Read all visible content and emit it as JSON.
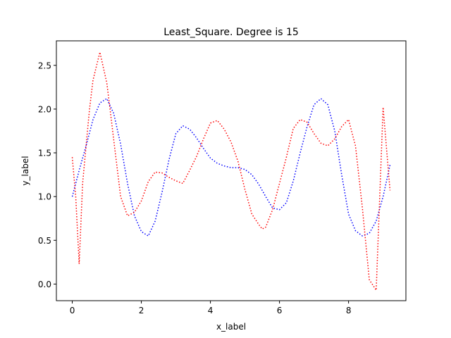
{
  "chart_data": {
    "type": "line",
    "title": "Least_Square. Degree is 15",
    "xlabel": "x_label",
    "ylabel": "y_label",
    "xlim": [
      -0.46,
      9.66
    ],
    "ylim": [
      -0.19,
      2.78
    ],
    "xticks": [
      0,
      2,
      4,
      6,
      8
    ],
    "xtick_labels": [
      "0",
      "2",
      "4",
      "6",
      "8"
    ],
    "yticks": [
      0.0,
      0.5,
      1.0,
      1.5,
      2.0,
      2.5
    ],
    "ytick_labels": [
      "0.0",
      "0.5",
      "1.0",
      "1.5",
      "2.0",
      "2.5"
    ],
    "grid": false,
    "series": [
      {
        "color": "#0000ff",
        "linestyle": "dotted",
        "x": [
          0.0,
          0.2,
          0.4,
          0.6,
          0.8,
          1.0,
          1.2,
          1.4,
          1.6,
          1.8,
          2.0,
          2.2,
          2.4,
          2.6,
          2.8,
          3.0,
          3.2,
          3.4,
          3.6,
          3.8,
          4.0,
          4.2,
          4.4,
          4.6,
          4.8,
          5.0,
          5.2,
          5.4,
          5.6,
          5.8,
          6.0,
          6.2,
          6.4,
          6.6,
          6.8,
          7.0,
          7.2,
          7.4,
          7.6,
          7.8,
          8.0,
          8.2,
          8.4,
          8.6,
          8.8,
          9.0,
          9.2
        ],
        "values": [
          1.0,
          1.3,
          1.58,
          1.88,
          2.07,
          2.12,
          1.95,
          1.6,
          1.15,
          0.78,
          0.6,
          0.55,
          0.72,
          1.05,
          1.42,
          1.72,
          1.81,
          1.77,
          1.67,
          1.55,
          1.44,
          1.38,
          1.35,
          1.33,
          1.33,
          1.31,
          1.25,
          1.14,
          1.0,
          0.87,
          0.85,
          0.93,
          1.18,
          1.5,
          1.8,
          2.05,
          2.12,
          2.05,
          1.75,
          1.25,
          0.8,
          0.61,
          0.55,
          0.58,
          0.72,
          1.0,
          1.36
        ]
      },
      {
        "color": "#ff0000",
        "linestyle": "dotted",
        "x": [
          0.0,
          0.1,
          0.2,
          0.3,
          0.4,
          0.5,
          0.6,
          0.8,
          1.0,
          1.1,
          1.2,
          1.4,
          1.6,
          1.8,
          2.0,
          2.2,
          2.4,
          2.6,
          2.8,
          3.0,
          3.2,
          3.4,
          3.6,
          3.8,
          4.0,
          4.2,
          4.4,
          4.6,
          4.8,
          5.0,
          5.2,
          5.4,
          5.5,
          5.6,
          5.8,
          6.0,
          6.2,
          6.4,
          6.6,
          6.8,
          7.0,
          7.2,
          7.4,
          7.6,
          7.8,
          8.0,
          8.2,
          8.4,
          8.6,
          8.8,
          9.0,
          9.2
        ],
        "values": [
          1.45,
          1.0,
          0.23,
          1.15,
          1.58,
          2.0,
          2.33,
          2.65,
          2.3,
          1.98,
          1.65,
          1.0,
          0.78,
          0.82,
          0.95,
          1.17,
          1.28,
          1.27,
          1.22,
          1.18,
          1.15,
          1.3,
          1.46,
          1.66,
          1.84,
          1.87,
          1.77,
          1.62,
          1.4,
          1.08,
          0.8,
          0.68,
          0.63,
          0.65,
          0.85,
          1.15,
          1.45,
          1.78,
          1.88,
          1.85,
          1.72,
          1.61,
          1.58,
          1.66,
          1.8,
          1.88,
          1.58,
          0.87,
          0.05,
          -0.07,
          2.02,
          1.07
        ]
      }
    ]
  }
}
